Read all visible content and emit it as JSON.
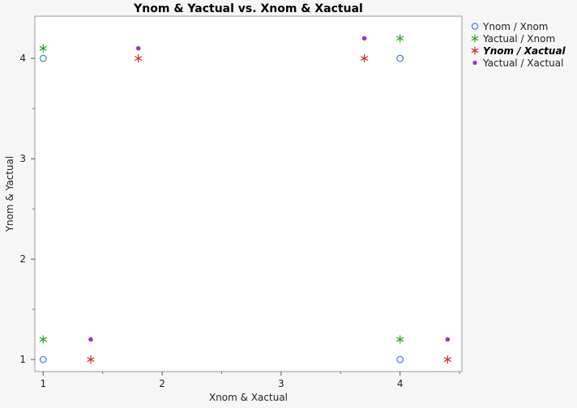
{
  "chart_data": {
    "type": "scatter",
    "title": "Ynom & Yactual vs. Xnom & Xactual",
    "xlabel": "Xnom & Xactual",
    "ylabel": "Ynom & Yactual",
    "xlim": [
      0.93,
      4.52
    ],
    "ylim": [
      0.88,
      4.42
    ],
    "xticks": [
      1,
      2,
      3,
      4
    ],
    "yticks": [
      1,
      2,
      3,
      4
    ],
    "xminor": [
      1.5,
      2.5,
      3.5,
      4.5
    ],
    "yminor": [
      1.5,
      2.5,
      3.5
    ],
    "grid": false,
    "legend_position": "right",
    "series": [
      {
        "name": "Ynom / Xnom",
        "marker": "circle",
        "color": "#4a7fd4",
        "emphasized": false,
        "points": [
          [
            1,
            4
          ],
          [
            1,
            1
          ],
          [
            4,
            4
          ],
          [
            4,
            1
          ]
        ]
      },
      {
        "name": "Yactual / Xnom",
        "marker": "asterisk",
        "color": "#2ca02c",
        "emphasized": false,
        "points": [
          [
            1,
            4.1
          ],
          [
            1,
            1.2
          ],
          [
            4,
            4.2
          ],
          [
            4,
            1.2
          ]
        ]
      },
      {
        "name": "Ynom / Xactual",
        "marker": "asterisk",
        "color": "#c8282e",
        "emphasized": true,
        "points": [
          [
            1.8,
            4
          ],
          [
            1.4,
            1
          ],
          [
            3.7,
            4
          ],
          [
            4.4,
            1
          ]
        ]
      },
      {
        "name": "Yactual / Xactual",
        "marker": "dot",
        "color": "#9b30d9",
        "emphasized": false,
        "points": [
          [
            1.8,
            4.1
          ],
          [
            1.4,
            1.2
          ],
          [
            3.7,
            4.2
          ],
          [
            4.4,
            1.2
          ]
        ]
      }
    ]
  }
}
